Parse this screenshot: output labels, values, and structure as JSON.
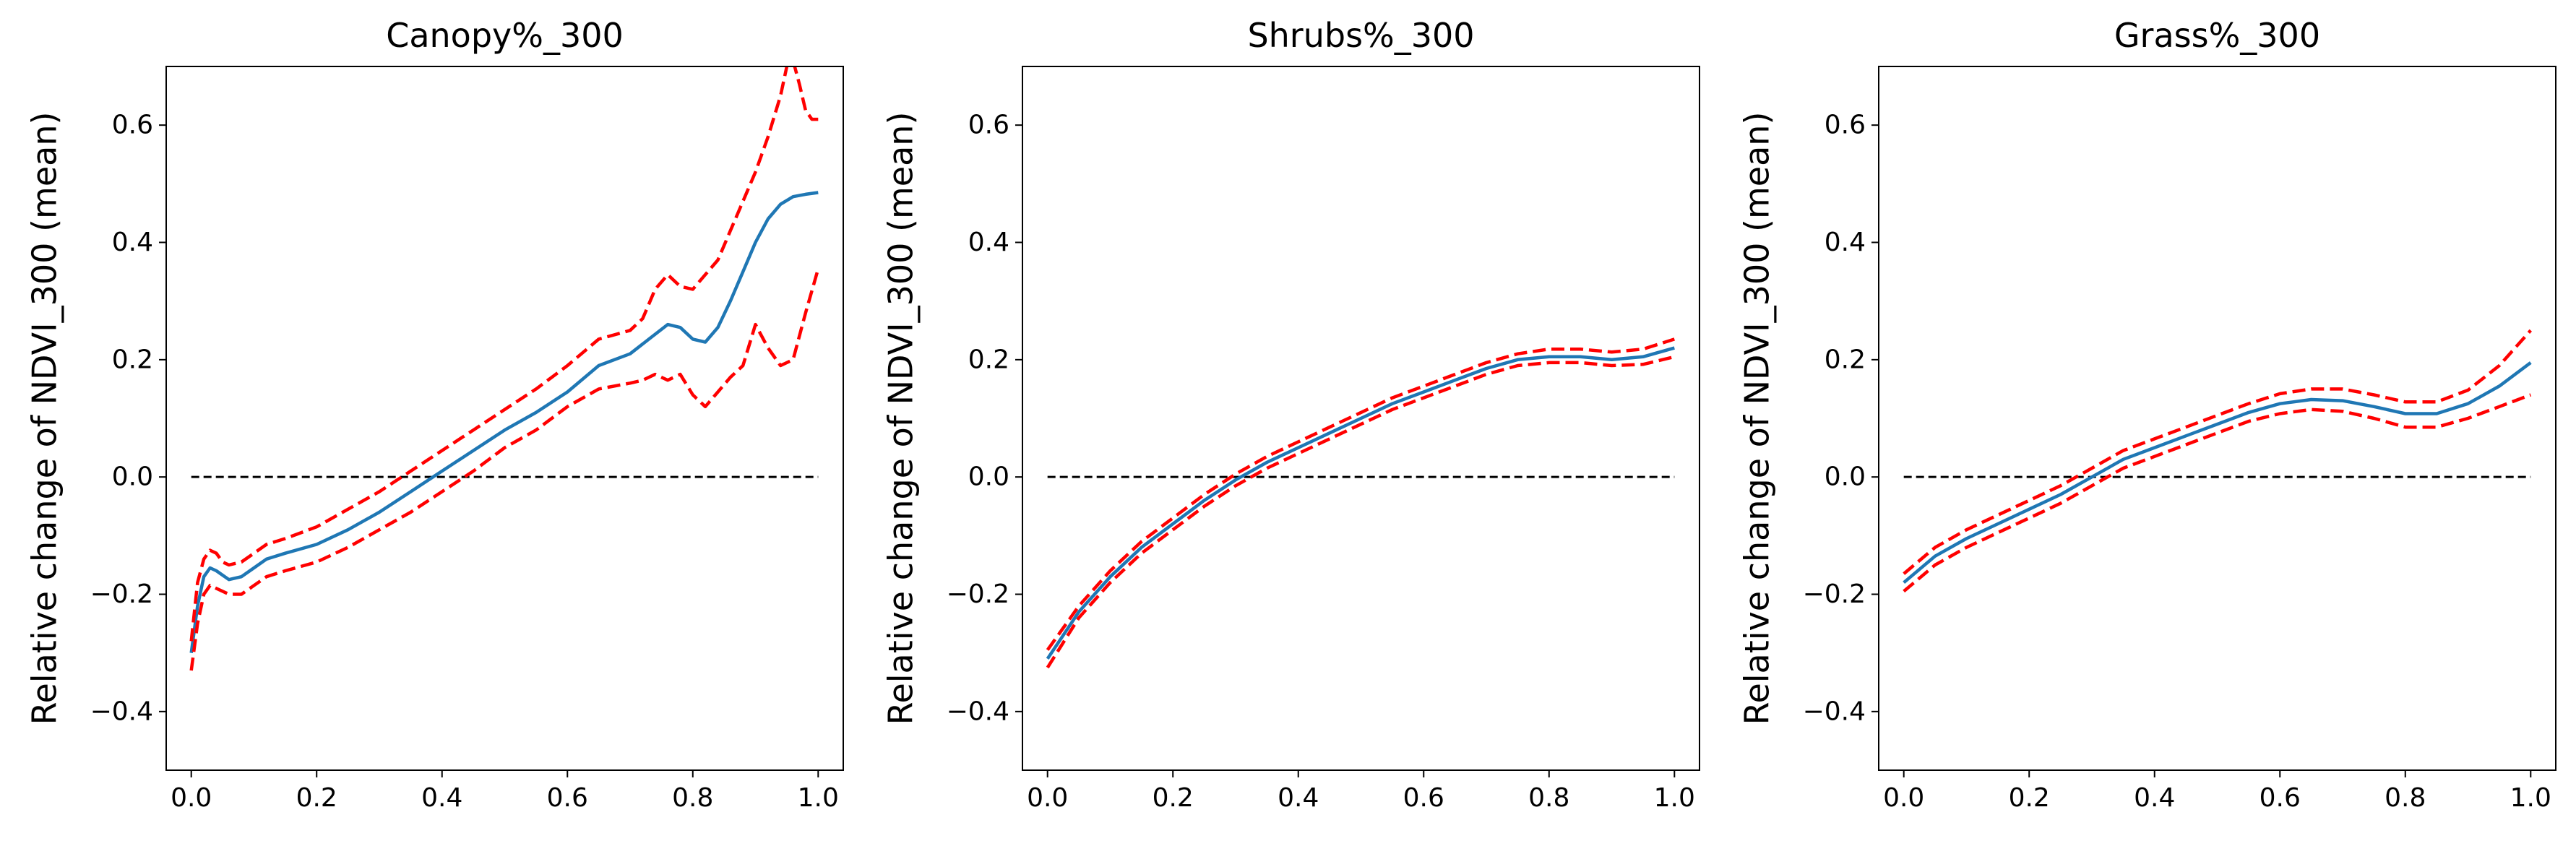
{
  "chart_data": [
    {
      "type": "line",
      "title": "Canopy%_300",
      "xlabel": "",
      "ylabel": "Relative change of NDVI_300 (mean)",
      "xlim": [
        -0.04,
        1.04
      ],
      "ylim": [
        -0.5,
        0.7
      ],
      "xticks": [
        0.0,
        0.2,
        0.4,
        0.6,
        0.8,
        1.0
      ],
      "xtick_labels": [
        "0.0",
        "0.2",
        "0.4",
        "0.6",
        "0.8",
        "1.0"
      ],
      "yticks": [
        -0.4,
        -0.2,
        0.0,
        0.2,
        0.4,
        0.6
      ],
      "ytick_labels": [
        "−0.4",
        "−0.2",
        "0.0",
        "0.2",
        "0.4",
        "0.6"
      ],
      "reference_line": {
        "y": 0.0,
        "x": [
          0.0,
          1.0
        ],
        "style": "dashed",
        "color": "#000000"
      },
      "series": [
        {
          "role": "mean",
          "color": "#1f77b4",
          "style": "solid",
          "x": [
            0.0,
            0.01,
            0.02,
            0.03,
            0.04,
            0.06,
            0.08,
            0.1,
            0.12,
            0.15,
            0.2,
            0.25,
            0.3,
            0.35,
            0.4,
            0.45,
            0.5,
            0.55,
            0.6,
            0.65,
            0.7,
            0.73,
            0.76,
            0.78,
            0.8,
            0.82,
            0.84,
            0.86,
            0.88,
            0.9,
            0.92,
            0.94,
            0.96,
            0.98,
            1.0
          ],
          "y": [
            -0.3,
            -0.22,
            -0.17,
            -0.155,
            -0.16,
            -0.175,
            -0.17,
            -0.155,
            -0.14,
            -0.13,
            -0.115,
            -0.09,
            -0.06,
            -0.025,
            0.01,
            0.045,
            0.08,
            0.11,
            0.145,
            0.19,
            0.21,
            0.235,
            0.26,
            0.255,
            0.235,
            0.23,
            0.255,
            0.3,
            0.35,
            0.4,
            0.44,
            0.465,
            0.478,
            0.482,
            0.485
          ]
        },
        {
          "role": "upper bound",
          "color": "#ff0000",
          "style": "dashed",
          "x": [
            0.0,
            0.01,
            0.02,
            0.03,
            0.04,
            0.05,
            0.06,
            0.08,
            0.1,
            0.12,
            0.15,
            0.2,
            0.25,
            0.3,
            0.35,
            0.4,
            0.45,
            0.5,
            0.55,
            0.6,
            0.65,
            0.7,
            0.72,
            0.74,
            0.76,
            0.78,
            0.8,
            0.82,
            0.84,
            0.86,
            0.88,
            0.9,
            0.92,
            0.94,
            0.95,
            0.96,
            0.97,
            0.98,
            0.99,
            1.0
          ],
          "y": [
            -0.28,
            -0.18,
            -0.14,
            -0.125,
            -0.13,
            -0.145,
            -0.15,
            -0.145,
            -0.13,
            -0.115,
            -0.105,
            -0.085,
            -0.055,
            -0.025,
            0.01,
            0.045,
            0.08,
            0.115,
            0.15,
            0.19,
            0.235,
            0.25,
            0.27,
            0.32,
            0.345,
            0.325,
            0.32,
            0.345,
            0.37,
            0.42,
            0.47,
            0.52,
            0.58,
            0.65,
            0.7,
            0.71,
            0.67,
            0.625,
            0.61,
            0.61
          ]
        },
        {
          "role": "lower bound",
          "color": "#ff0000",
          "style": "dashed",
          "x": [
            0.0,
            0.01,
            0.02,
            0.03,
            0.04,
            0.06,
            0.08,
            0.1,
            0.12,
            0.15,
            0.2,
            0.25,
            0.3,
            0.35,
            0.4,
            0.45,
            0.5,
            0.55,
            0.6,
            0.65,
            0.7,
            0.72,
            0.74,
            0.76,
            0.78,
            0.8,
            0.82,
            0.84,
            0.86,
            0.88,
            0.9,
            0.92,
            0.94,
            0.96,
            0.98,
            1.0
          ],
          "y": [
            -0.33,
            -0.25,
            -0.2,
            -0.185,
            -0.19,
            -0.2,
            -0.2,
            -0.185,
            -0.17,
            -0.16,
            -0.145,
            -0.12,
            -0.09,
            -0.06,
            -0.025,
            0.01,
            0.05,
            0.08,
            0.12,
            0.15,
            0.16,
            0.165,
            0.175,
            0.165,
            0.175,
            0.14,
            0.12,
            0.145,
            0.17,
            0.19,
            0.26,
            0.22,
            0.19,
            0.2,
            0.28,
            0.355
          ]
        }
      ]
    },
    {
      "type": "line",
      "title": "Shrubs%_300",
      "xlabel": "",
      "ylabel": "Relative change of NDVI_300 (mean)",
      "xlim": [
        -0.04,
        1.04
      ],
      "ylim": [
        -0.5,
        0.7
      ],
      "xticks": [
        0.0,
        0.2,
        0.4,
        0.6,
        0.8,
        1.0
      ],
      "xtick_labels": [
        "0.0",
        "0.2",
        "0.4",
        "0.6",
        "0.8",
        "1.0"
      ],
      "yticks": [
        -0.4,
        -0.2,
        0.0,
        0.2,
        0.4,
        0.6
      ],
      "ytick_labels": [
        "−0.4",
        "−0.2",
        "0.0",
        "0.2",
        "0.4",
        "0.6"
      ],
      "reference_line": {
        "y": 0.0,
        "x": [
          0.0,
          1.0
        ],
        "style": "dashed",
        "color": "#000000"
      },
      "series": [
        {
          "role": "mean",
          "color": "#1f77b4",
          "style": "solid",
          "x": [
            0.0,
            0.05,
            0.1,
            0.15,
            0.2,
            0.25,
            0.3,
            0.35,
            0.4,
            0.45,
            0.5,
            0.55,
            0.6,
            0.65,
            0.7,
            0.75,
            0.8,
            0.85,
            0.9,
            0.95,
            1.0
          ],
          "y": [
            -0.31,
            -0.23,
            -0.17,
            -0.12,
            -0.08,
            -0.04,
            -0.005,
            0.025,
            0.05,
            0.075,
            0.1,
            0.125,
            0.145,
            0.165,
            0.185,
            0.2,
            0.205,
            0.205,
            0.2,
            0.205,
            0.22
          ]
        },
        {
          "role": "upper bound",
          "color": "#ff0000",
          "style": "dashed",
          "x": [
            0.0,
            0.05,
            0.1,
            0.15,
            0.2,
            0.25,
            0.3,
            0.35,
            0.4,
            0.45,
            0.5,
            0.55,
            0.6,
            0.65,
            0.7,
            0.75,
            0.8,
            0.85,
            0.9,
            0.95,
            1.0
          ],
          "y": [
            -0.295,
            -0.22,
            -0.16,
            -0.11,
            -0.07,
            -0.03,
            0.005,
            0.035,
            0.06,
            0.085,
            0.11,
            0.135,
            0.155,
            0.175,
            0.195,
            0.21,
            0.218,
            0.218,
            0.213,
            0.218,
            0.235
          ]
        },
        {
          "role": "lower bound",
          "color": "#ff0000",
          "style": "dashed",
          "x": [
            0.0,
            0.05,
            0.1,
            0.15,
            0.2,
            0.25,
            0.3,
            0.35,
            0.4,
            0.45,
            0.5,
            0.55,
            0.6,
            0.65,
            0.7,
            0.75,
            0.8,
            0.85,
            0.9,
            0.95,
            1.0
          ],
          "y": [
            -0.325,
            -0.24,
            -0.18,
            -0.13,
            -0.09,
            -0.05,
            -0.015,
            0.015,
            0.04,
            0.065,
            0.09,
            0.115,
            0.135,
            0.155,
            0.175,
            0.19,
            0.195,
            0.195,
            0.19,
            0.192,
            0.205
          ]
        }
      ]
    },
    {
      "type": "line",
      "title": "Grass%_300",
      "xlabel": "",
      "ylabel": "Relative change of NDVI_300 (mean)",
      "xlim": [
        -0.04,
        1.04
      ],
      "ylim": [
        -0.5,
        0.7
      ],
      "xticks": [
        0.0,
        0.2,
        0.4,
        0.6,
        0.8,
        1.0
      ],
      "xtick_labels": [
        "0.0",
        "0.2",
        "0.4",
        "0.6",
        "0.8",
        "1.0"
      ],
      "yticks": [
        -0.4,
        -0.2,
        0.0,
        0.2,
        0.4,
        0.6
      ],
      "ytick_labels": [
        "−0.4",
        "−0.2",
        "0.0",
        "0.2",
        "0.4",
        "0.6"
      ],
      "reference_line": {
        "y": 0.0,
        "x": [
          0.0,
          1.0
        ],
        "style": "dashed",
        "color": "#000000"
      },
      "series": [
        {
          "role": "mean",
          "color": "#1f77b4",
          "style": "solid",
          "x": [
            0.0,
            0.05,
            0.1,
            0.15,
            0.2,
            0.25,
            0.3,
            0.35,
            0.4,
            0.45,
            0.5,
            0.55,
            0.6,
            0.65,
            0.7,
            0.75,
            0.8,
            0.85,
            0.9,
            0.95,
            1.0
          ],
          "y": [
            -0.18,
            -0.135,
            -0.105,
            -0.08,
            -0.055,
            -0.03,
            0.0,
            0.03,
            0.05,
            0.07,
            0.09,
            0.11,
            0.125,
            0.132,
            0.13,
            0.12,
            0.108,
            0.108,
            0.125,
            0.155,
            0.195
          ]
        },
        {
          "role": "upper bound",
          "color": "#ff0000",
          "style": "dashed",
          "x": [
            0.0,
            0.05,
            0.1,
            0.15,
            0.2,
            0.25,
            0.3,
            0.35,
            0.4,
            0.45,
            0.5,
            0.55,
            0.6,
            0.65,
            0.7,
            0.75,
            0.8,
            0.85,
            0.9,
            0.95,
            1.0
          ],
          "y": [
            -0.165,
            -0.12,
            -0.09,
            -0.065,
            -0.04,
            -0.015,
            0.015,
            0.045,
            0.065,
            0.085,
            0.105,
            0.125,
            0.142,
            0.15,
            0.15,
            0.14,
            0.128,
            0.128,
            0.148,
            0.19,
            0.25
          ]
        },
        {
          "role": "lower bound",
          "color": "#ff0000",
          "style": "dashed",
          "x": [
            0.0,
            0.05,
            0.1,
            0.15,
            0.2,
            0.25,
            0.3,
            0.35,
            0.4,
            0.45,
            0.5,
            0.55,
            0.6,
            0.65,
            0.7,
            0.75,
            0.8,
            0.85,
            0.9,
            0.95,
            1.0
          ],
          "y": [
            -0.195,
            -0.15,
            -0.12,
            -0.095,
            -0.07,
            -0.045,
            -0.015,
            0.015,
            0.035,
            0.055,
            0.075,
            0.095,
            0.108,
            0.115,
            0.112,
            0.1,
            0.085,
            0.085,
            0.1,
            0.12,
            0.14
          ]
        }
      ]
    }
  ]
}
